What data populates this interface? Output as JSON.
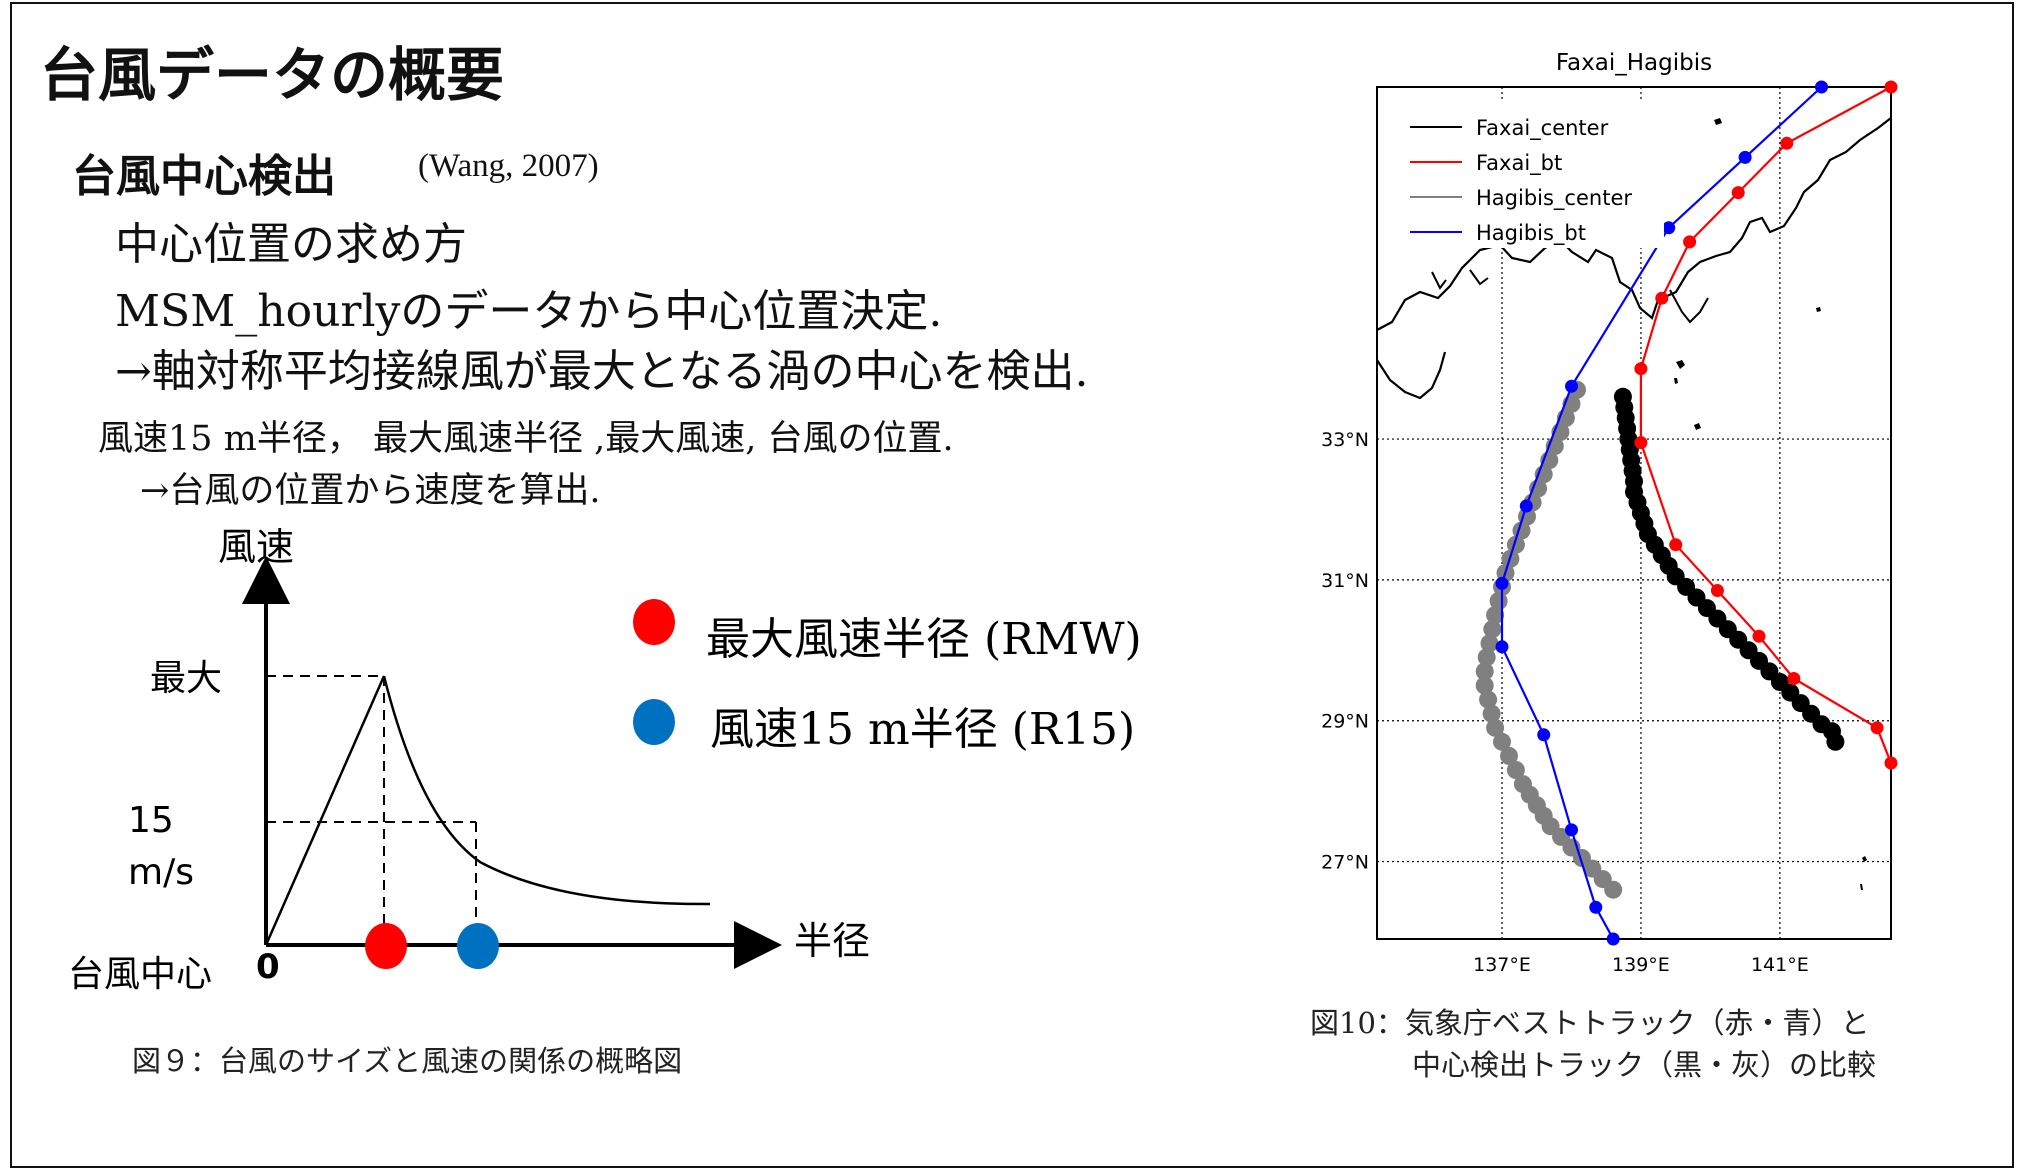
{
  "slide": {
    "title": "台風データの概要",
    "section": "台風中心検出",
    "citation": "(Wang, 2007)",
    "lines": [
      "中心位置の求め方",
      "MSM_hourlyのデータから中心位置決定.",
      "→軸対称平均接線風が最大となる渦の中心を検出.",
      "風速15 m半径，  最大風速半径 ,最大風速,   台風の位置.",
      "→台風の位置から速度を算出."
    ],
    "fig9_caption": "図９：台風のサイズと風速の関係の概略図",
    "fig10_caption_line1": "図10：気象庁ベストトラック（赤・青）と",
    "fig10_caption_line2": "中心検出トラック（黒・灰）の比較"
  },
  "diagram": {
    "y_axis_label": "風速",
    "x_axis_label": "半径",
    "origin_label": "台風中心",
    "origin_value": "0",
    "max_label": "最大",
    "wind15_label": "15",
    "wind15_unit": "m/s",
    "legend": [
      {
        "label": "最大風速半径 (RMW)",
        "color": "#ff0000"
      },
      {
        "label": "風速15 m半径 (R15)",
        "color": "#0070c0"
      }
    ]
  },
  "chart_data": {
    "type": "line",
    "title": "Faxai_Hagibis",
    "xlabel": "",
    "ylabel": "",
    "xlim": [
      135.2,
      142.6
    ],
    "ylim": [
      25.9,
      38.0
    ],
    "x_ticks": [
      "137°E",
      "139°E",
      "141°E"
    ],
    "y_ticks": [
      "27°N",
      "29°N",
      "31°N",
      "33°N"
    ],
    "x_tick_values": [
      137,
      139,
      141
    ],
    "y_tick_values": [
      27,
      29,
      31,
      33
    ],
    "legend_position": "top-left",
    "series": [
      {
        "name": "Faxai_center",
        "color": "#000000",
        "style": "dots",
        "x": [
          141.8,
          141.75,
          141.6,
          141.45,
          141.3,
          141.15,
          141.0,
          140.85,
          140.7,
          140.55,
          140.4,
          140.25,
          140.1,
          139.95,
          139.8,
          139.65,
          139.5,
          139.4,
          139.3,
          139.2,
          139.1,
          139.05,
          139.0,
          138.95,
          138.9,
          138.9,
          138.88,
          138.86,
          138.84,
          138.82,
          138.8,
          138.78,
          138.76,
          138.74
        ],
        "y": [
          28.7,
          28.85,
          28.95,
          29.1,
          29.25,
          29.4,
          29.55,
          29.7,
          29.85,
          30.0,
          30.15,
          30.3,
          30.45,
          30.6,
          30.75,
          30.9,
          31.05,
          31.2,
          31.35,
          31.5,
          31.65,
          31.8,
          31.95,
          32.1,
          32.25,
          32.4,
          32.55,
          32.7,
          32.85,
          33.0,
          33.15,
          33.3,
          33.45,
          33.6
        ]
      },
      {
        "name": "Faxai_bt",
        "color": "#ff0000",
        "style": "line+dots",
        "x": [
          142.6,
          142.4,
          141.2,
          140.7,
          140.1,
          139.5,
          139.0,
          139.0,
          139.3,
          139.7,
          140.4,
          141.1,
          142.6
        ],
        "y": [
          28.4,
          28.9,
          29.6,
          30.2,
          30.85,
          31.5,
          32.95,
          34.0,
          35.0,
          35.8,
          36.5,
          37.2,
          38.0
        ]
      },
      {
        "name": "Hagibis_center",
        "color": "#808080",
        "style": "dots",
        "x": [
          138.6,
          138.45,
          138.3,
          138.15,
          138.0,
          137.85,
          137.7,
          137.6,
          137.5,
          137.4,
          137.3,
          137.2,
          137.1,
          137.0,
          136.9,
          136.85,
          136.8,
          136.75,
          136.75,
          136.78,
          136.82,
          136.86,
          136.9,
          136.95,
          137.0,
          137.05,
          137.12,
          137.2,
          137.28,
          137.36,
          137.44,
          137.52,
          137.6,
          137.68,
          137.76,
          137.84,
          137.92,
          138.0,
          138.08
        ],
        "y": [
          26.6,
          26.75,
          26.9,
          27.05,
          27.2,
          27.35,
          27.5,
          27.65,
          27.8,
          27.95,
          28.1,
          28.3,
          28.5,
          28.7,
          28.9,
          29.1,
          29.3,
          29.5,
          29.7,
          29.9,
          30.1,
          30.3,
          30.5,
          30.7,
          30.9,
          31.1,
          31.3,
          31.5,
          31.7,
          31.9,
          32.1,
          32.3,
          32.5,
          32.7,
          32.9,
          33.1,
          33.3,
          33.5,
          33.7
        ]
      },
      {
        "name": "Hagibis_bt",
        "color": "#0000ff",
        "style": "line+dots",
        "x": [
          138.6,
          138.35,
          138.0,
          137.6,
          137.0,
          137.0,
          137.35,
          138.0,
          139.4,
          140.5,
          141.6
        ],
        "y": [
          25.9,
          26.35,
          27.45,
          28.8,
          30.05,
          30.95,
          32.05,
          33.75,
          36.0,
          37.0,
          38.0
        ]
      }
    ]
  }
}
